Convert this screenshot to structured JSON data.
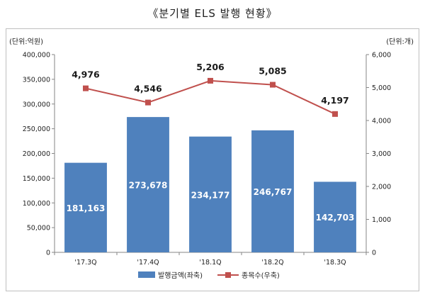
{
  "title": "《분기별 ELS 발행 현황》",
  "colors": {
    "bar": "#4f81bd",
    "line": "#c0504d",
    "axis": "#868686",
    "text": "#222222"
  },
  "chart_data": {
    "type": "bar+line",
    "title": "《분기별 ELS 발행 현황》",
    "categories": [
      "'17.3Q",
      "'17.4Q",
      "'18.1Q",
      "'18.2Q",
      "'18.3Q"
    ],
    "series": [
      {
        "name": "발행금액(좌축)",
        "type": "bar",
        "axis": "left",
        "values": [
          181163,
          273678,
          234177,
          246767,
          142703
        ],
        "labels": [
          "181,163",
          "273,678",
          "234,177",
          "246,767",
          "142,703"
        ]
      },
      {
        "name": "종목수(우축)",
        "type": "line",
        "axis": "right",
        "values": [
          4976,
          4546,
          5206,
          5085,
          4197
        ],
        "labels": [
          "4,976",
          "4,546",
          "5,206",
          "5,085",
          "4,197"
        ]
      }
    ],
    "left_axis": {
      "unit": "(단위:억원)",
      "ylim": [
        0,
        400000
      ],
      "ticks": [
        0,
        50000,
        100000,
        150000,
        200000,
        250000,
        300000,
        350000,
        400000
      ],
      "tick_labels": [
        "0",
        "50,000",
        "100,000",
        "150,000",
        "200,000",
        "250,000",
        "300,000",
        "350,000",
        "400,000"
      ]
    },
    "right_axis": {
      "unit": "(단위:개)",
      "ylim": [
        0,
        6000
      ],
      "ticks": [
        0,
        1000,
        2000,
        3000,
        4000,
        5000,
        6000
      ],
      "tick_labels": [
        "0",
        "1,000",
        "2,000",
        "3,000",
        "4,000",
        "5,000",
        "6,000"
      ]
    },
    "legend_position": "bottom-center",
    "grid": false
  }
}
